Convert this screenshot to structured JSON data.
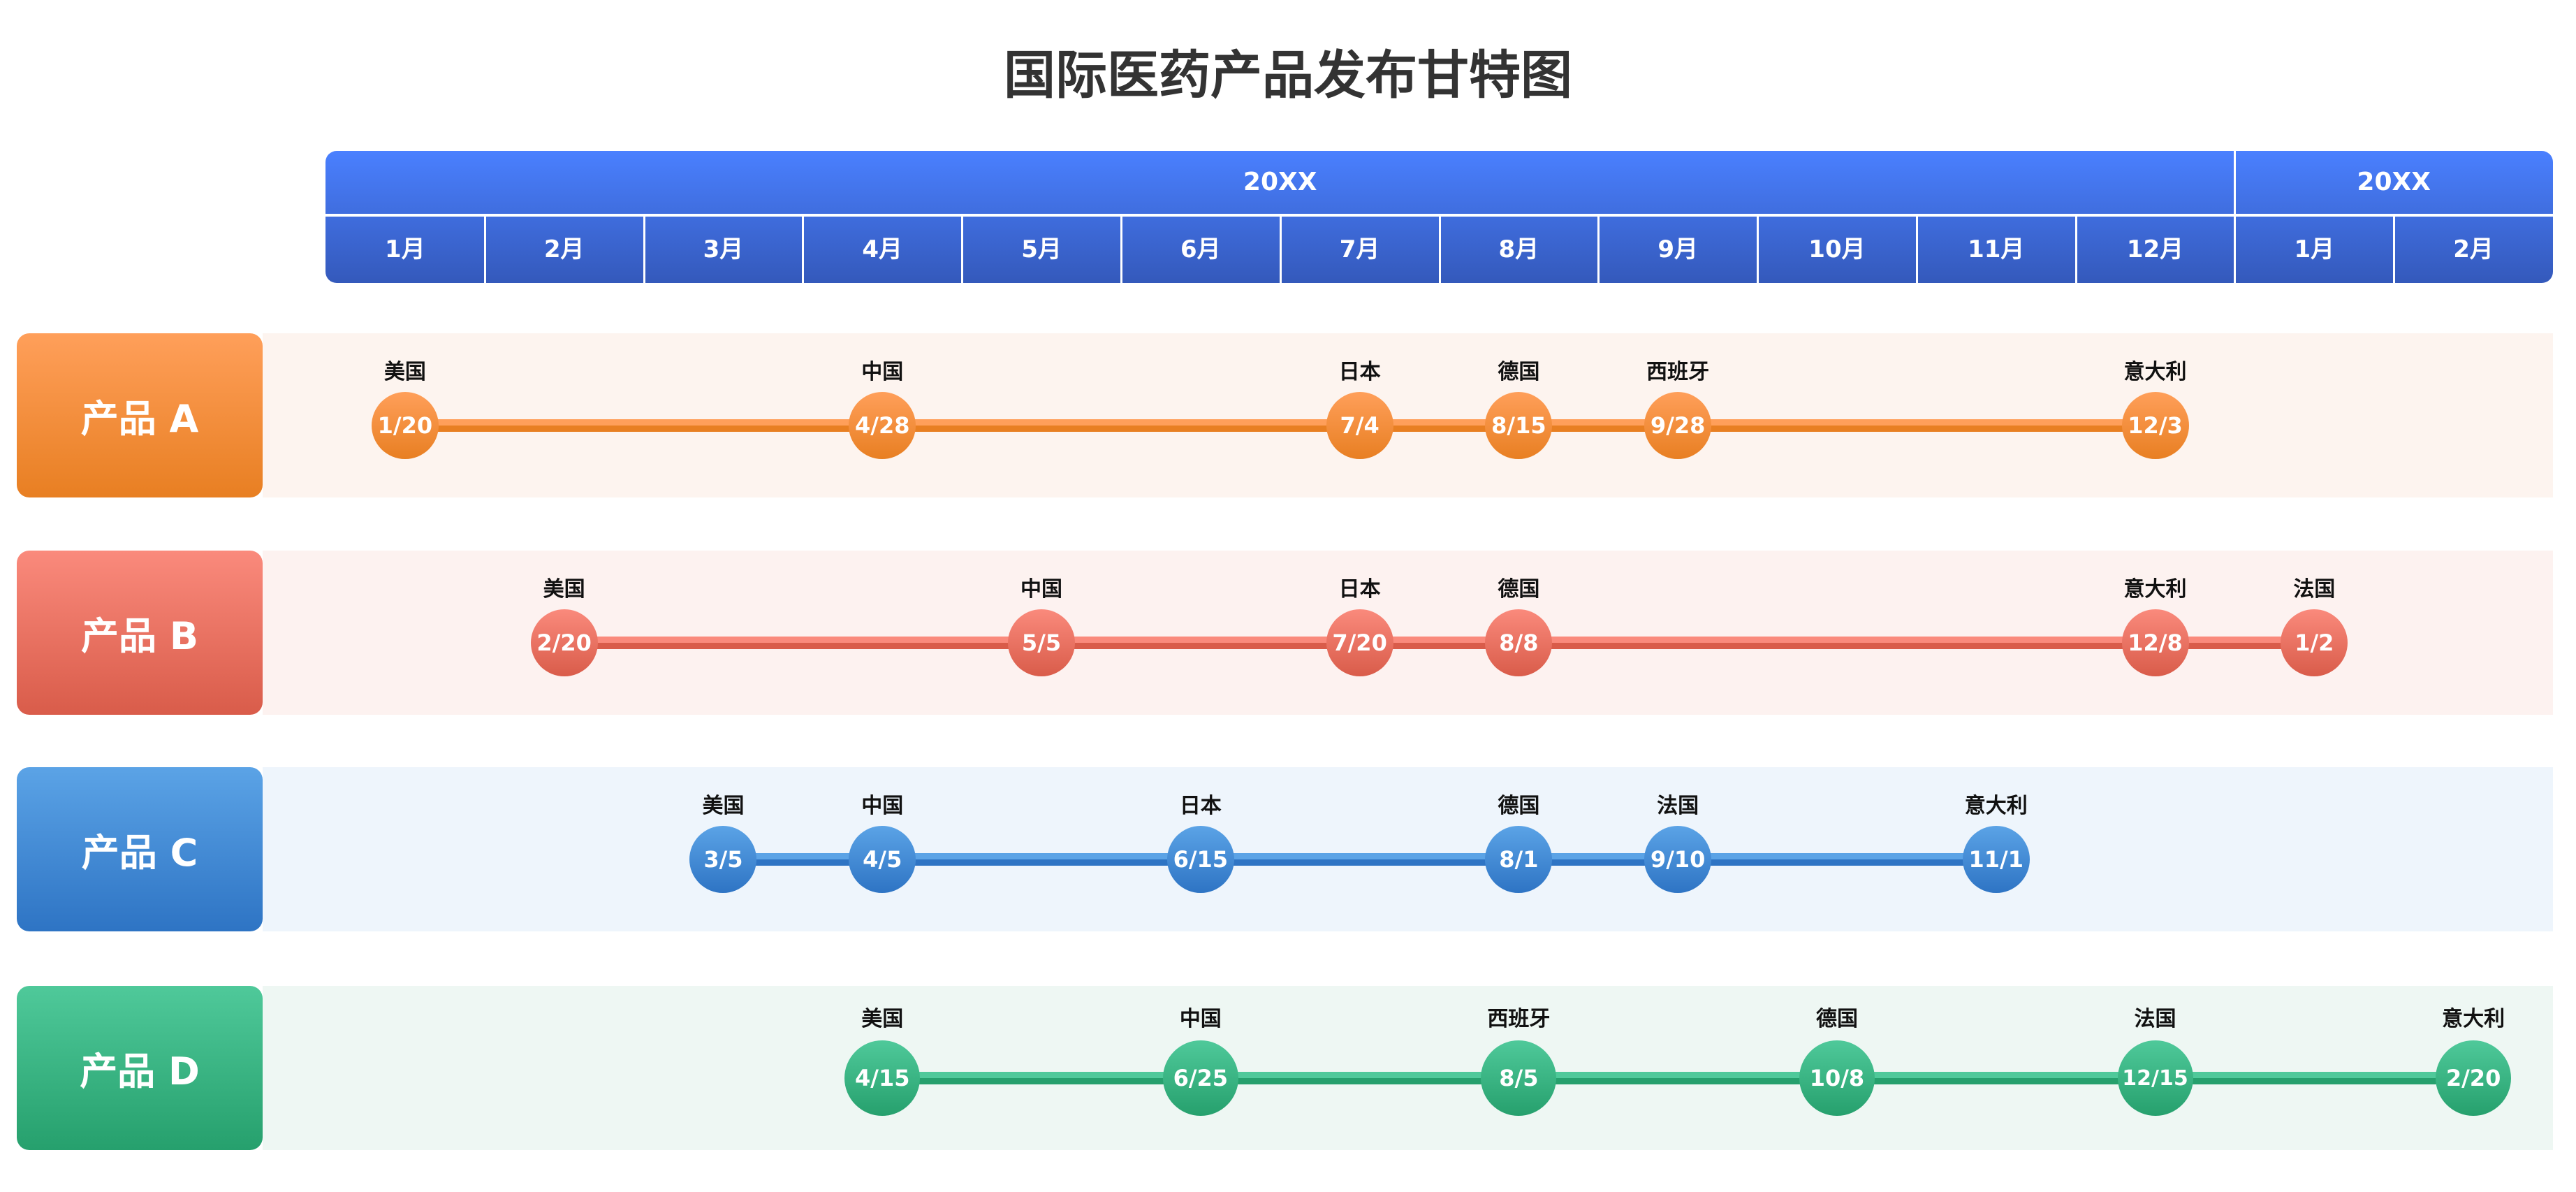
{
  "chart_data": {
    "type": "timeline-gantt",
    "title": "国际医药产品发布甘特图",
    "years": [
      {
        "label": "20XX",
        "months": 12
      },
      {
        "label": "20XX",
        "months": 2
      }
    ],
    "months": [
      "1月",
      "2月",
      "3月",
      "4月",
      "5月",
      "6月",
      "7月",
      "8月",
      "9月",
      "10月",
      "11月",
      "12月",
      "1月",
      "2月"
    ],
    "products": [
      {
        "name": "产品 A",
        "color_top": "#ff9f5a",
        "color_bottom": "#e87f22",
        "band": "#fdf4ef",
        "releases": [
          {
            "country": "美国",
            "date": "1/20"
          },
          {
            "country": "中国",
            "date": "4/28"
          },
          {
            "country": "日本",
            "date": "7/4"
          },
          {
            "country": "德国",
            "date": "8/15"
          },
          {
            "country": "西班牙",
            "date": "9/28"
          },
          {
            "country": "意大利",
            "date": "12/3"
          }
        ]
      },
      {
        "name": "产品 B",
        "color_top": "#fa8a7c",
        "color_bottom": "#d95c4a",
        "band": "#fdf2f0",
        "releases": [
          {
            "country": "美国",
            "date": "2/20"
          },
          {
            "country": "中国",
            "date": "5/5"
          },
          {
            "country": "日本",
            "date": "7/20"
          },
          {
            "country": "德国",
            "date": "8/8"
          },
          {
            "country": "意大利",
            "date": "12/8"
          },
          {
            "country": "法国",
            "date": "1/2"
          }
        ]
      },
      {
        "name": "产品 C",
        "color_top": "#5ba3e6",
        "color_bottom": "#2e74c4",
        "band": "#eef5fc",
        "releases": [
          {
            "country": "美国",
            "date": "3/5"
          },
          {
            "country": "中国",
            "date": "4/5"
          },
          {
            "country": "日本",
            "date": "6/15"
          },
          {
            "country": "德国",
            "date": "8/1"
          },
          {
            "country": "法国",
            "date": "9/10"
          },
          {
            "country": "意大利",
            "date": "11/1"
          }
        ]
      },
      {
        "name": "产品 D",
        "color_top": "#4fc99a",
        "color_bottom": "#26a06d",
        "band": "#eef7f3",
        "releases": [
          {
            "country": "美国",
            "date": "4/15"
          },
          {
            "country": "中国",
            "date": "6/25"
          },
          {
            "country": "西班牙",
            "date": "8/5"
          },
          {
            "country": "德国",
            "date": "10/8"
          },
          {
            "country": "法国",
            "date": "12/15"
          },
          {
            "country": "意大利",
            "date": "2/20"
          }
        ]
      }
    ],
    "header_colors": {
      "top": "#4a80ff",
      "bottom": "#3459bb"
    }
  }
}
